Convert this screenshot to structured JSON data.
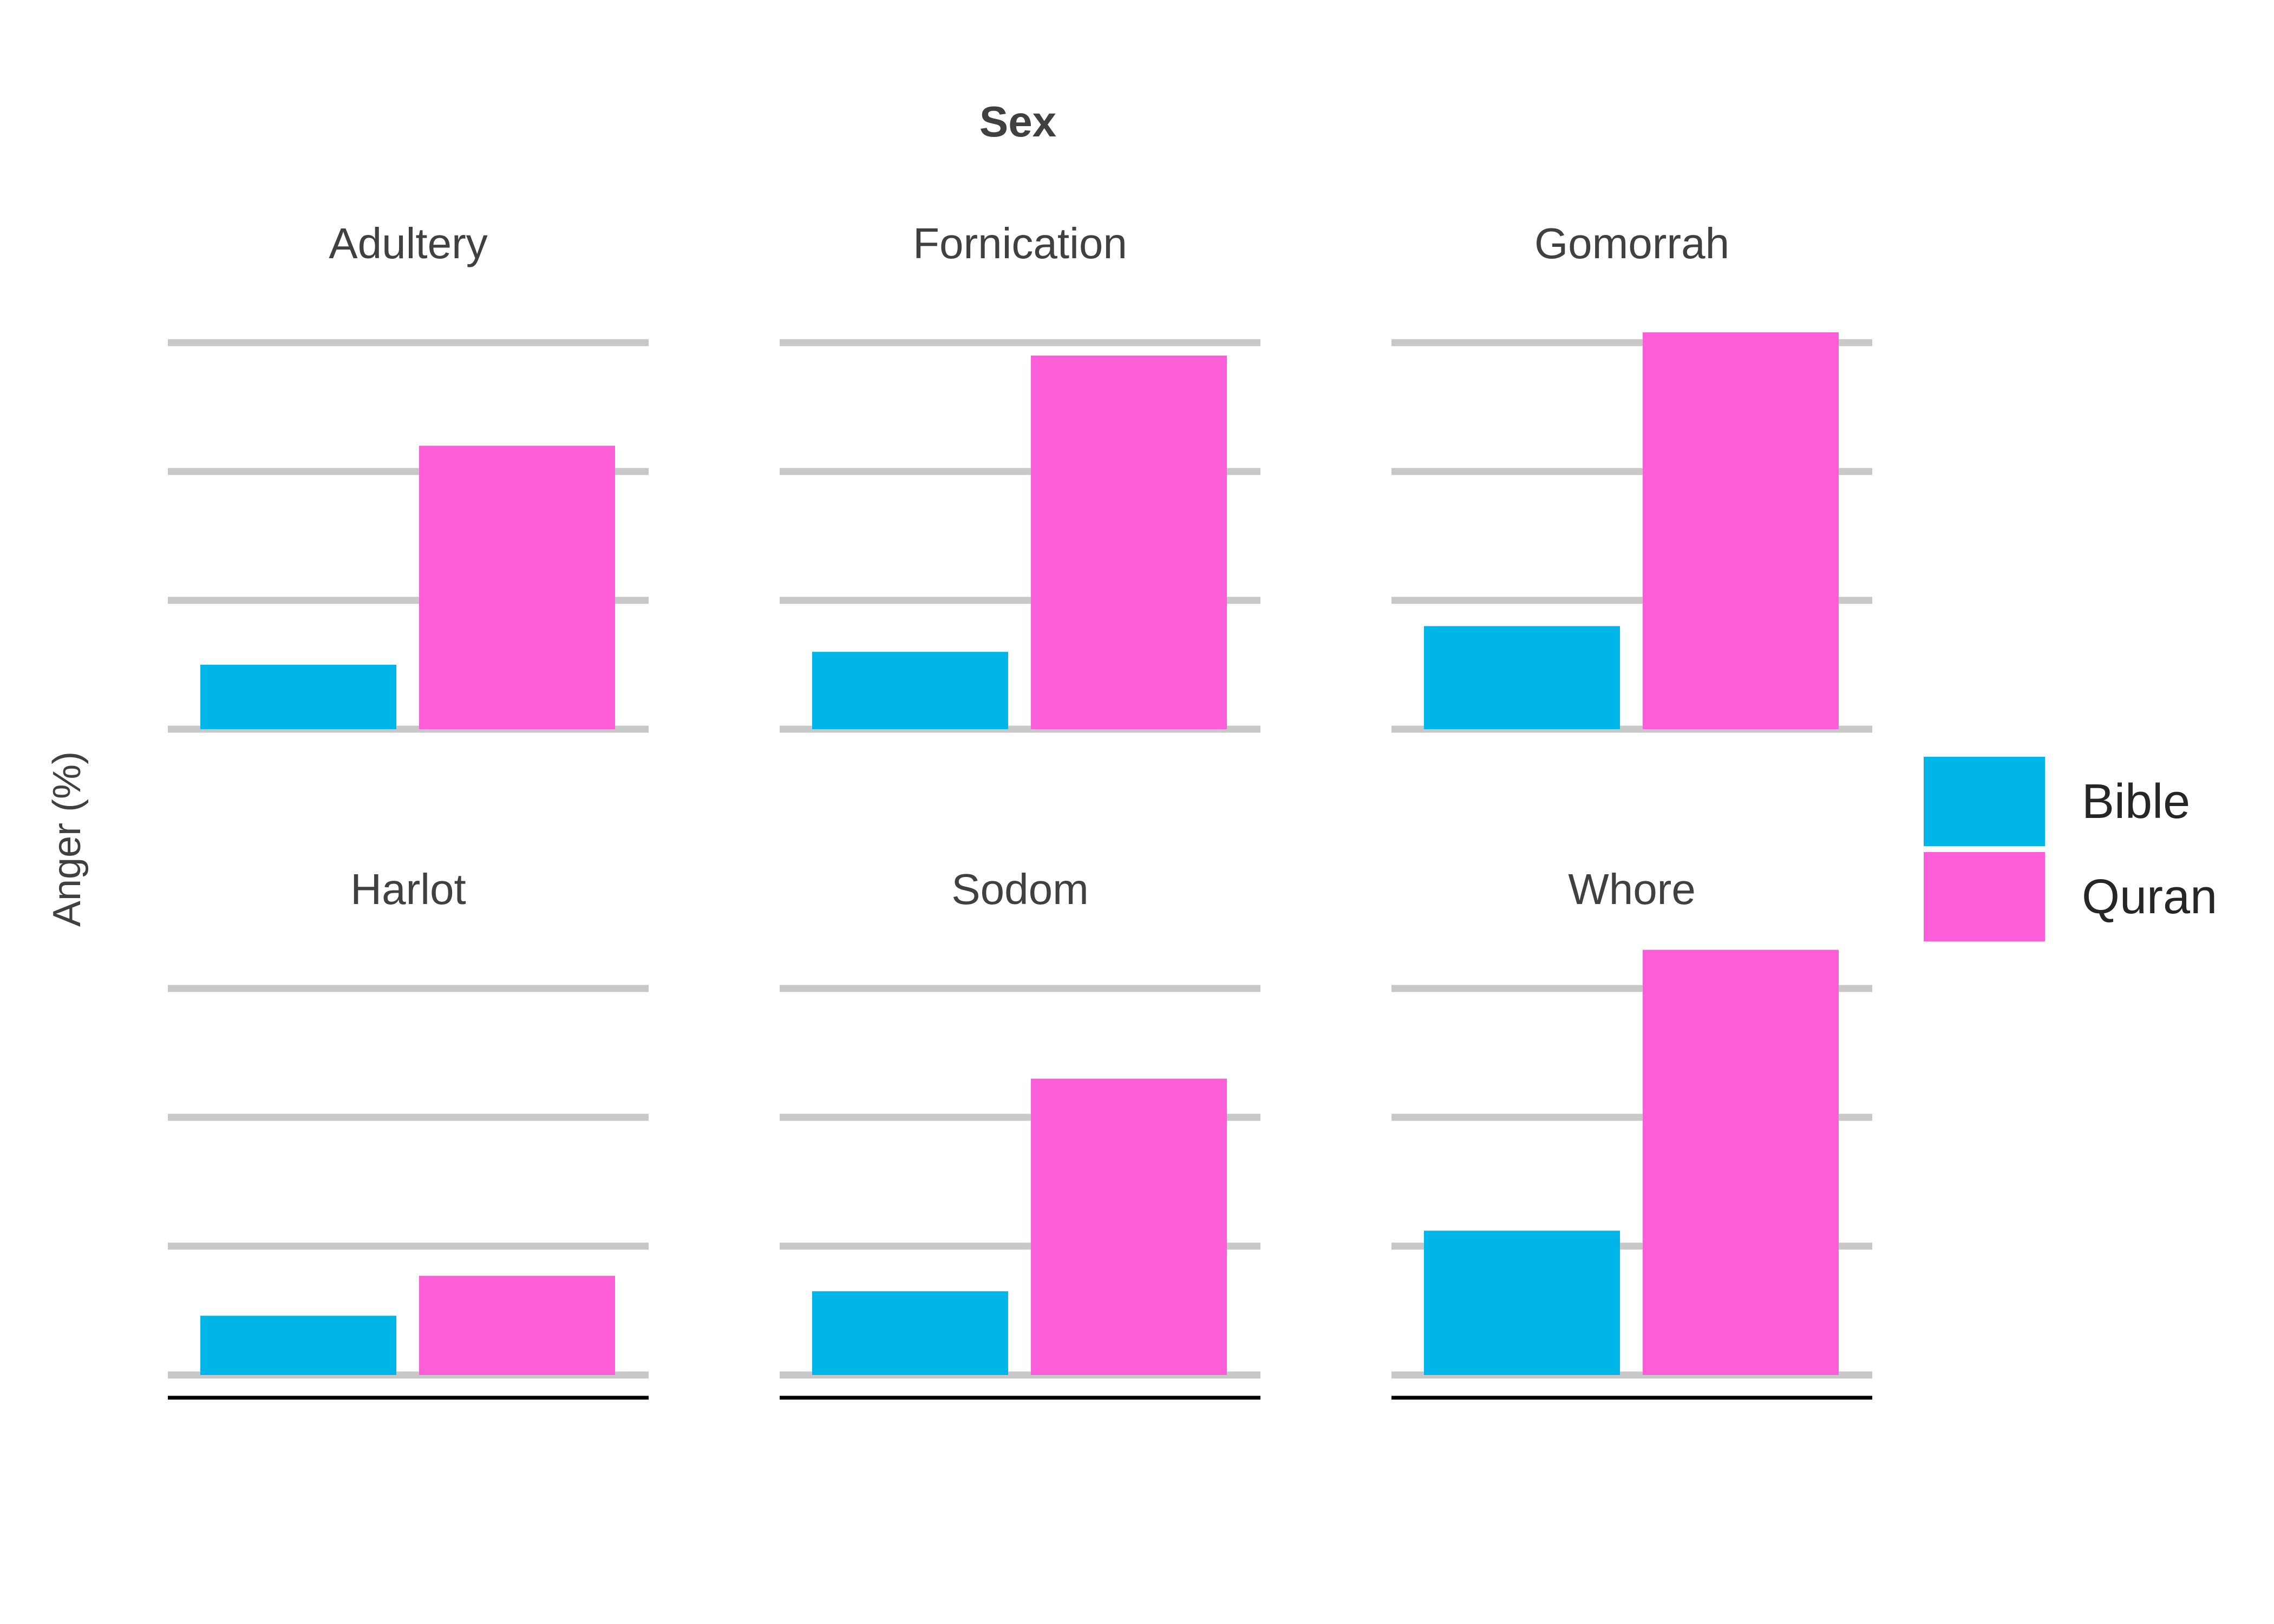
{
  "chart_data": {
    "type": "bar",
    "title": "Sex",
    "xlabel": "",
    "ylabel": "Anger (%)",
    "ylim": [
      0,
      3
    ],
    "grid": true,
    "legend_placement": "right",
    "series": [
      {
        "name": "Bible",
        "color": "#00B5E8"
      },
      {
        "name": "Quran",
        "color": "#FB5ED6"
      }
    ],
    "facets": [
      {
        "name": "Adultery",
        "values": {
          "Bible": 0.5,
          "Quran": 2.2
        }
      },
      {
        "name": "Fornication",
        "values": {
          "Bible": 0.6,
          "Quran": 2.9
        }
      },
      {
        "name": "Gomorrah",
        "values": {
          "Bible": 0.8,
          "Quran": 3.08
        }
      },
      {
        "name": "Harlot",
        "values": {
          "Bible": 0.46,
          "Quran": 0.77
        }
      },
      {
        "name": "Sodom",
        "values": {
          "Bible": 0.65,
          "Quran": 2.3
        }
      },
      {
        "name": "Whore",
        "values": {
          "Bible": 1.12,
          "Quran": 3.3
        }
      }
    ]
  }
}
